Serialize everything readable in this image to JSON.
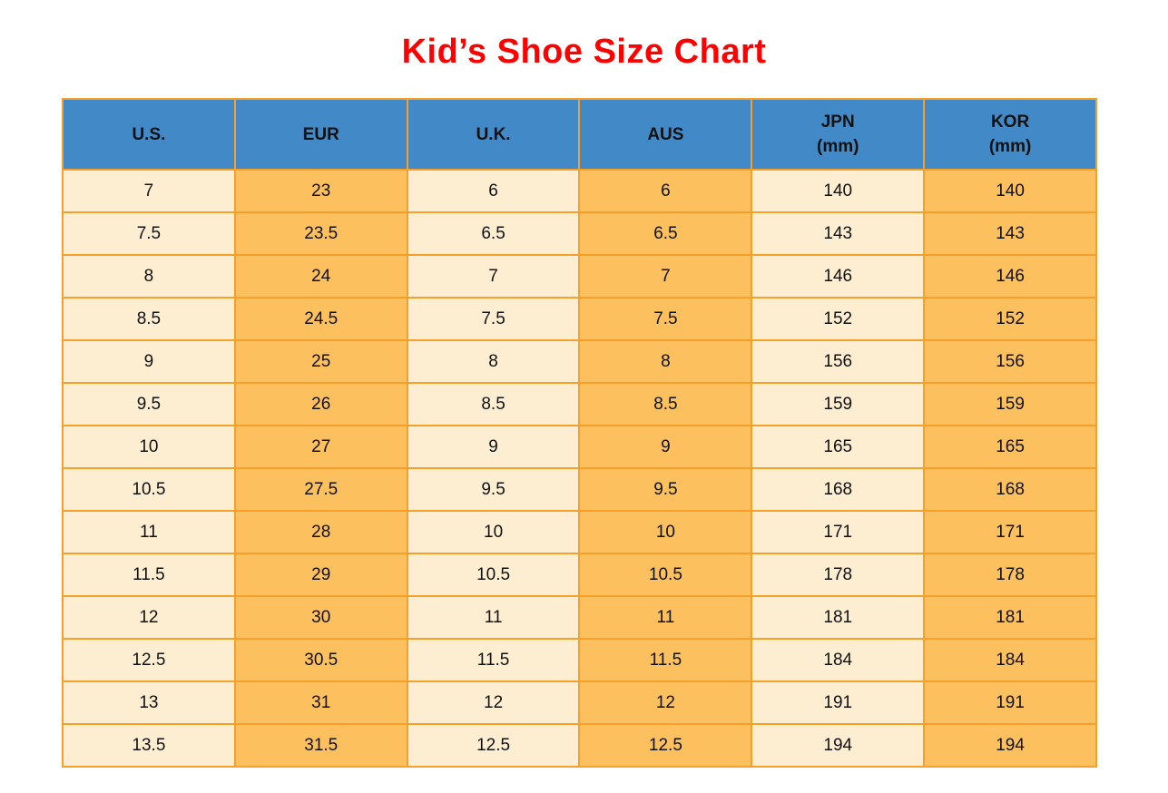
{
  "title": "Kid’s Shoe Size Chart",
  "colors": {
    "title_red": "#ff0000",
    "header_blue": "#4289c7",
    "grid_orange_border": "#f5a02b",
    "column_cream": "#fdeed2",
    "column_orange": "#fcc05f",
    "text": "#111111",
    "page_background": "#ffffff"
  },
  "chart_data": {
    "type": "table",
    "title": "Kid’s Shoe Size Chart",
    "columns": [
      {
        "key": "us",
        "label": "U.S.",
        "sublabel": ""
      },
      {
        "key": "eur",
        "label": "EUR",
        "sublabel": ""
      },
      {
        "key": "uk",
        "label": "U.K.",
        "sublabel": ""
      },
      {
        "key": "aus",
        "label": "AUS",
        "sublabel": ""
      },
      {
        "key": "jpn",
        "label": "JPN",
        "sublabel": "(mm)"
      },
      {
        "key": "kor",
        "label": "KOR",
        "sublabel": "(mm)"
      }
    ],
    "rows": [
      [
        "7",
        "23",
        "6",
        "6",
        "140",
        "140"
      ],
      [
        "7.5",
        "23.5",
        "6.5",
        "6.5",
        "143",
        "143"
      ],
      [
        "8",
        "24",
        "7",
        "7",
        "146",
        "146"
      ],
      [
        "8.5",
        "24.5",
        "7.5",
        "7.5",
        "152",
        "152"
      ],
      [
        "9",
        "25",
        "8",
        "8",
        "156",
        "156"
      ],
      [
        "9.5",
        "26",
        "8.5",
        "8.5",
        "159",
        "159"
      ],
      [
        "10",
        "27",
        "9",
        "9",
        "165",
        "165"
      ],
      [
        "10.5",
        "27.5",
        "9.5",
        "9.5",
        "168",
        "168"
      ],
      [
        "11",
        "28",
        "10",
        "10",
        "171",
        "171"
      ],
      [
        "11.5",
        "29",
        "10.5",
        "10.5",
        "178",
        "178"
      ],
      [
        "12",
        "30",
        "11",
        "11",
        "181",
        "181"
      ],
      [
        "12.5",
        "30.5",
        "11.5",
        "11.5",
        "184",
        "184"
      ],
      [
        "13",
        "31",
        "12",
        "12",
        "191",
        "191"
      ],
      [
        "13.5",
        "31.5",
        "12.5",
        "12.5",
        "194",
        "194"
      ]
    ]
  }
}
